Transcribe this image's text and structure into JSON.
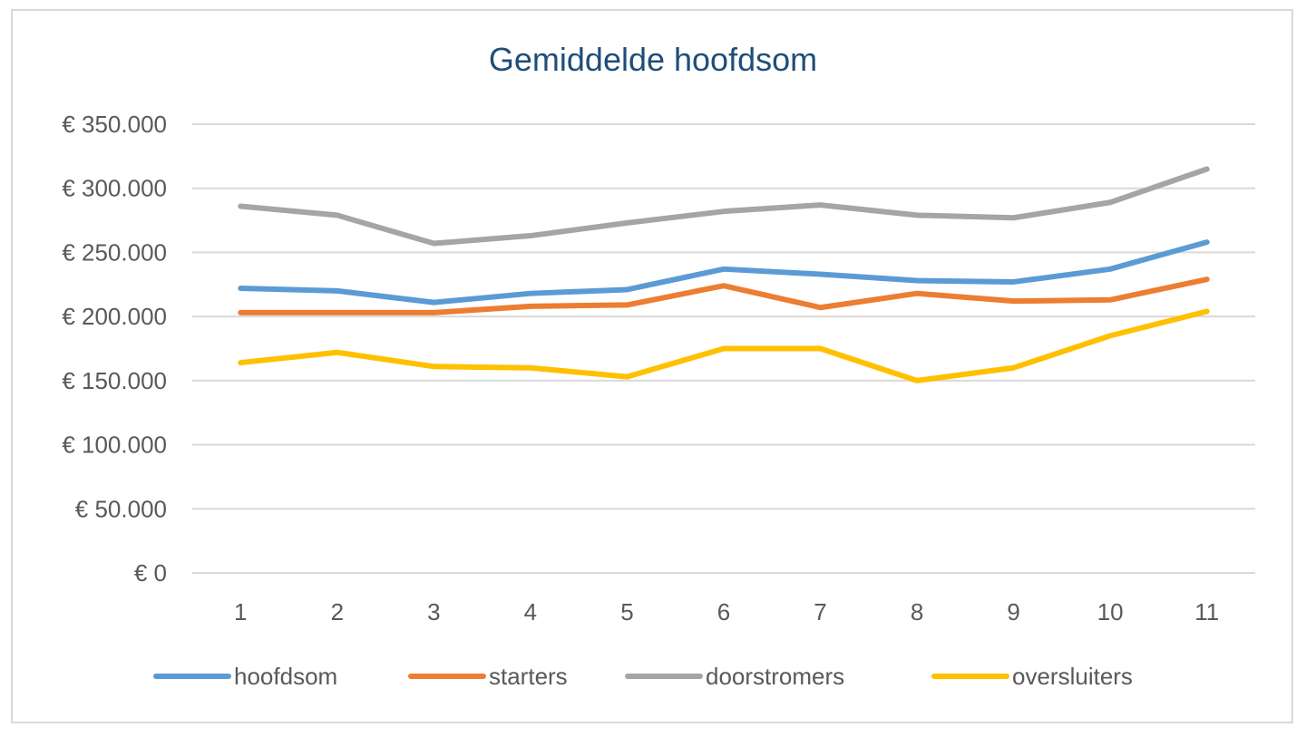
{
  "chart_data": {
    "type": "line",
    "title": "Gemiddelde hoofdsom",
    "xlabel": "",
    "ylabel": "",
    "categories": [
      "1",
      "2",
      "3",
      "4",
      "5",
      "6",
      "7",
      "8",
      "9",
      "10",
      "11"
    ],
    "ylim": [
      0,
      350000
    ],
    "yticks": [
      0,
      50000,
      100000,
      150000,
      200000,
      250000,
      300000,
      350000
    ],
    "ytick_labels": [
      "€ 0",
      "€ 50.000",
      "€ 100.000",
      "€ 150.000",
      "€ 200.000",
      "€ 250.000",
      "€ 300.000",
      "€ 350.000"
    ],
    "grid": "horizontal",
    "legend_position": "bottom",
    "series": [
      {
        "name": "hoofdsom",
        "color": "#5b9bd5",
        "values": [
          222000,
          220000,
          211000,
          218000,
          221000,
          237000,
          233000,
          228000,
          227000,
          237000,
          258000
        ]
      },
      {
        "name": "starters",
        "color": "#ed7d31",
        "values": [
          203000,
          203000,
          203000,
          208000,
          209000,
          224000,
          207000,
          218000,
          212000,
          213000,
          229000
        ]
      },
      {
        "name": "doorstromers",
        "color": "#a5a5a5",
        "values": [
          286000,
          279000,
          257000,
          263000,
          273000,
          282000,
          287000,
          279000,
          277000,
          289000,
          315000
        ]
      },
      {
        "name": "oversluiters",
        "color": "#ffc000",
        "values": [
          164000,
          172000,
          161000,
          160000,
          153000,
          175000,
          175000,
          150000,
          160000,
          185000,
          204000
        ]
      }
    ]
  }
}
